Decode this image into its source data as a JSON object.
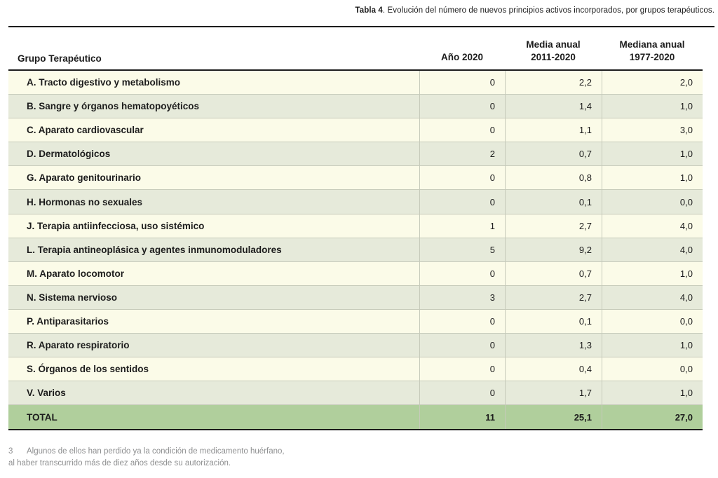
{
  "title": {
    "bold": "Tabla 4",
    "rest": ". Evolución del número de nuevos principios activos incorporados, por grupos terapéuticos."
  },
  "table": {
    "header": {
      "grupo": "Grupo Terapéutico",
      "ano2020": "Año 2020",
      "media_line1": "Media anual",
      "media_line2": "2011-2020",
      "mediana_line1": "Mediana anual",
      "mediana_line2": "1977-2020"
    },
    "rows": [
      {
        "label": "A. Tracto digestivo y metabolismo",
        "ano2020": "0",
        "media": "2,2",
        "mediana": "2,0"
      },
      {
        "label": "B. Sangre y órganos hematopoyéticos",
        "ano2020": "0",
        "media": "1,4",
        "mediana": "1,0"
      },
      {
        "label": "C. Aparato cardiovascular",
        "ano2020": "0",
        "media": "1,1",
        "mediana": "3,0"
      },
      {
        "label": "D. Dermatológicos",
        "ano2020": "2",
        "media": "0,7",
        "mediana": "1,0"
      },
      {
        "label": "G. Aparato genitourinario",
        "ano2020": "0",
        "media": "0,8",
        "mediana": "1,0"
      },
      {
        "label": "H. Hormonas no sexuales",
        "ano2020": "0",
        "media": "0,1",
        "mediana": "0,0"
      },
      {
        "label": "J. Terapia antiinfecciosa, uso sistémico",
        "ano2020": "1",
        "media": "2,7",
        "mediana": "4,0"
      },
      {
        "label": "L. Terapia antineoplásica y agentes inmunomoduladores",
        "ano2020": "5",
        "media": "9,2",
        "mediana": "4,0"
      },
      {
        "label": "M. Aparato locomotor",
        "ano2020": "0",
        "media": "0,7",
        "mediana": "1,0"
      },
      {
        "label": "N. Sistema nervioso",
        "ano2020": "3",
        "media": "2,7",
        "mediana": "4,0"
      },
      {
        "label": "P. Antiparasitarios",
        "ano2020": "0",
        "media": "0,1",
        "mediana": "0,0"
      },
      {
        "label": "R. Aparato respiratorio",
        "ano2020": "0",
        "media": "1,3",
        "mediana": "1,0"
      },
      {
        "label": "S. Órganos de los sentidos",
        "ano2020": "0",
        "media": "0,4",
        "mediana": "0,0"
      },
      {
        "label": "V. Varios",
        "ano2020": "0",
        "media": "1,7",
        "mediana": "1,0"
      }
    ],
    "total": {
      "label": "TOTAL",
      "ano2020": "11",
      "media": "25,1",
      "mediana": "27,0"
    }
  },
  "footnote": {
    "marker": "3",
    "line1": "Algunos de ellos han perdido ya la condición de medicamento huérfano,",
    "line2": "al haber transcurrido más de diez años desde su autorización."
  },
  "colors": {
    "row_cream": "#fbfbe8",
    "row_green": "#e6eada",
    "total_green": "#b0cf9c",
    "grid_line": "#c6caba",
    "rule_black": "#1c1c1c",
    "footnote_gray": "#8e8f90"
  }
}
